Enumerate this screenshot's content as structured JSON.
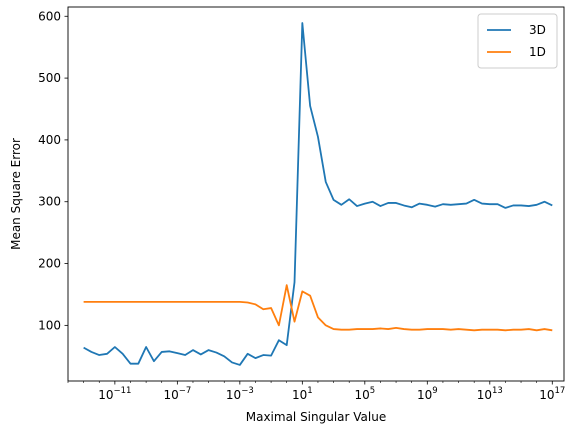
{
  "chart_data": {
    "type": "line",
    "xlabel": "Maximal Singular Value",
    "ylabel": "Mean Square Error",
    "xscale": "log",
    "xlim_exp": [
      -14.0,
      17.75
    ],
    "ylim": [
      10,
      615
    ],
    "x_ticks": [
      {
        "exp": -11,
        "label": "10",
        "sup": "−11"
      },
      {
        "exp": -7,
        "label": "10",
        "sup": "−7"
      },
      {
        "exp": -3,
        "label": "10",
        "sup": "−3"
      },
      {
        "exp": 1,
        "label": "10",
        "sup": "1"
      },
      {
        "exp": 5,
        "label": "10",
        "sup": "5"
      },
      {
        "exp": 9,
        "label": "10",
        "sup": "9"
      },
      {
        "exp": 13,
        "label": "10",
        "sup": "13"
      },
      {
        "exp": 17,
        "label": "10",
        "sup": "17"
      }
    ],
    "y_ticks": [
      100,
      200,
      300,
      400,
      500,
      600
    ],
    "legend_position": "top-right",
    "grid": false,
    "x_exp": [
      -13,
      -12.5,
      -12,
      -11.5,
      -11,
      -10.5,
      -10,
      -9.5,
      -9,
      -8.5,
      -8,
      -7.5,
      -7,
      -6.5,
      -6,
      -5.5,
      -5,
      -4.5,
      -4,
      -3.5,
      -3,
      -2.5,
      -2,
      -1.5,
      -1,
      -0.5,
      0,
      0.5,
      1,
      1.5,
      2,
      2.5,
      3,
      3.5,
      4,
      4.5,
      5,
      5.5,
      6,
      6.5,
      7,
      7.5,
      8,
      8.5,
      9,
      9.5,
      10,
      10.5,
      11,
      11.5,
      12,
      12.5,
      13,
      13.5,
      14,
      14.5,
      15,
      15.5,
      16,
      16.5,
      17
    ],
    "series": [
      {
        "name": "3D",
        "color": "#1f77b4",
        "values": [
          64,
          57,
          52,
          54,
          65,
          54,
          38,
          38,
          65,
          42,
          57,
          58,
          55,
          52,
          60,
          53,
          60,
          56,
          50,
          40,
          36,
          54,
          47,
          52,
          51,
          76,
          68,
          170,
          589,
          455,
          405,
          332,
          303,
          295,
          304,
          293,
          297,
          300,
          293,
          298,
          298,
          294,
          291,
          297,
          295,
          292,
          296,
          295,
          296,
          297,
          303,
          297,
          296,
          296,
          290,
          294,
          294,
          293,
          295,
          300,
          294
        ]
      },
      {
        "name": "1D",
        "color": "#ff7f0e",
        "values": [
          138,
          138,
          138,
          138,
          138,
          138,
          138,
          138,
          138,
          138,
          138,
          138,
          138,
          138,
          138,
          138,
          138,
          138,
          138,
          138,
          138,
          137,
          134,
          126,
          128,
          100,
          165,
          106,
          155,
          148,
          113,
          100,
          94,
          93,
          93,
          94,
          94,
          94,
          95,
          94,
          96,
          94,
          93,
          93,
          94,
          94,
          94,
          93,
          94,
          93,
          92,
          93,
          93,
          93,
          92,
          93,
          93,
          94,
          92,
          94,
          92
        ]
      }
    ]
  }
}
